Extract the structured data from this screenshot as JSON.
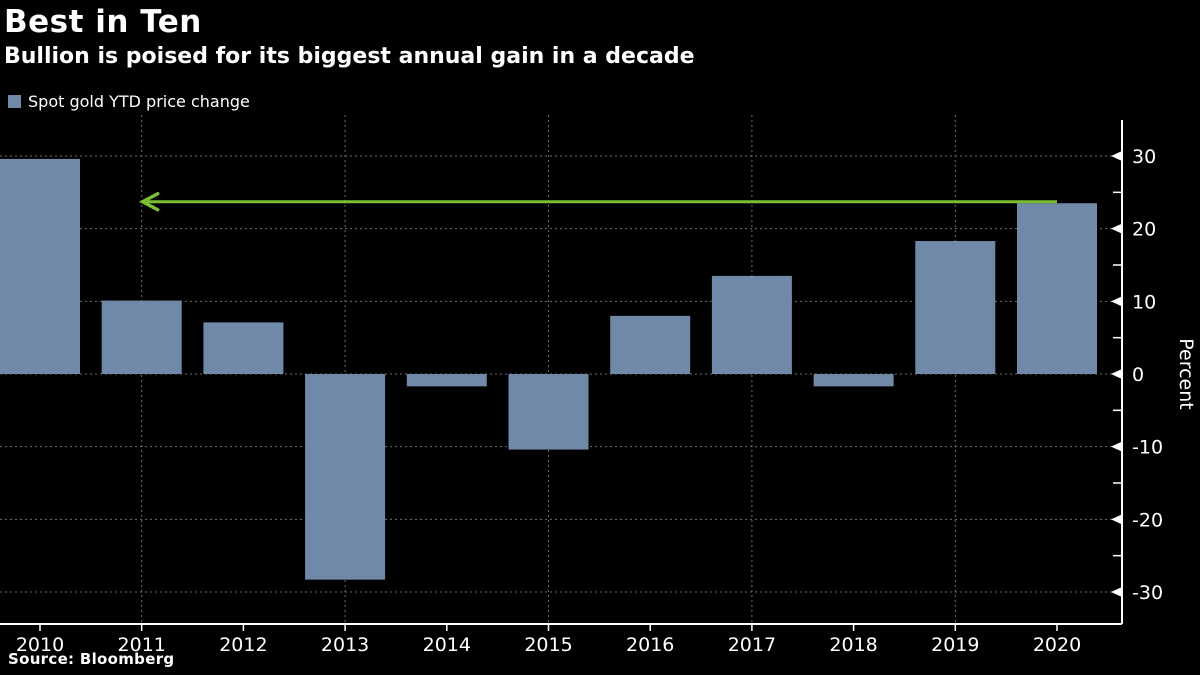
{
  "title": "Best in Ten",
  "subtitle": "Bullion is poised for its biggest annual gain in a decade",
  "legend": {
    "label": "Spot gold YTD price change"
  },
  "source": "Source:  Bloomberg",
  "colors": {
    "background": "#000000",
    "bar": "#7189A9",
    "grid": "#6f6f6f",
    "axis": "#ffffff",
    "text": "#ffffff",
    "annotation_green": "#7CBE31"
  },
  "chart_data": {
    "type": "bar",
    "title": "Best in Ten",
    "subtitle": "Bullion is poised for its biggest annual gain in a decade",
    "legend_entries": [
      "Spot gold YTD price change"
    ],
    "categories": [
      "2010",
      "2011",
      "2012",
      "2013",
      "2014",
      "2015",
      "2016",
      "2017",
      "2018",
      "2019",
      "2020"
    ],
    "values": [
      29.6,
      10.1,
      7.1,
      -28.3,
      -1.7,
      -10.4,
      8.0,
      13.5,
      -1.7,
      18.3,
      23.5
    ],
    "xlabel": "",
    "ylabel": "Percent",
    "ylim": [
      -35,
      35
    ],
    "yticks_major": [
      30,
      20,
      10,
      0,
      -10,
      -20,
      -30
    ],
    "yticks_minor": [
      25,
      15,
      5,
      -5,
      -15,
      -25
    ],
    "grid": "dashed, horizontal at major yticks, vertical at odd years",
    "legend_position": "top-left",
    "y_axis_side": "right",
    "bar_color": "#7189A9",
    "annotation": {
      "type": "arrow-left",
      "level": 23.5,
      "from_category": "2020",
      "to_category": "2011",
      "color": "#7CBE31",
      "meaning": "2020 gain is the biggest since 2010"
    }
  }
}
